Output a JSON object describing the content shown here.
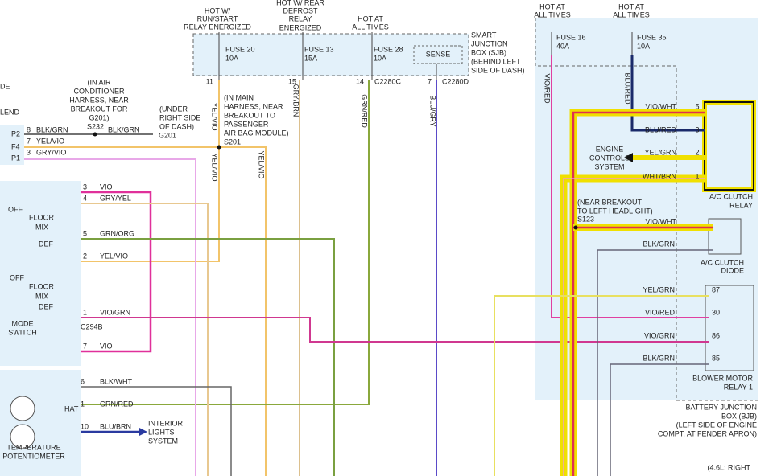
{
  "sjb": {
    "name": [
      "SMART",
      "JUNCTION",
      "BOX (SJB)",
      "(BEHIND LEFT",
      "SIDE OF DASH)"
    ],
    "feeds": [
      {
        "supply": [
          "HOT W/",
          "RUN/START",
          "RELAY ENERGIZED"
        ],
        "fuse": "FUSE 20",
        "rating": "10A",
        "pin": "11",
        "wire": "YEL/VIO"
      },
      {
        "supply": [
          "HOT W/ REAR",
          "DEFROST",
          "RELAY",
          "ENERGIZED"
        ],
        "fuse": "FUSE 13",
        "rating": "15A",
        "pin": "15",
        "wire": "GRY/BRN"
      },
      {
        "supply": [
          "HOT AT",
          "ALL TIMES"
        ],
        "fuse": "FUSE 28",
        "rating": "10A",
        "pin": "14",
        "connector": "C2280C",
        "wire": "GRN/RED"
      }
    ],
    "sense": {
      "label": "SENSE",
      "pin": "7",
      "connector": "C2280D",
      "wire": "BLU/GRY"
    }
  },
  "bjb": {
    "name": [
      "BATTERY JUNCTION",
      "BOX (BJB)",
      "(LEFT SIDE OF ENGINE",
      "COMPT, AT FENDER APRON)"
    ],
    "feeds": [
      {
        "supply": [
          "HOT AT",
          "ALL TIMES"
        ],
        "fuse": "FUSE 16",
        "rating": "40A",
        "wire": "VIO/RED"
      },
      {
        "supply": [
          "HOT AT",
          "ALL TIMES"
        ],
        "fuse": "FUSE 35",
        "rating": "10A",
        "wire": "BLU/RED"
      }
    ]
  },
  "ac_clutch_relay": {
    "name": [
      "A/C CLUTCH",
      "RELAY"
    ],
    "pins": [
      {
        "pin": "5",
        "wire": "VIO/WHT"
      },
      {
        "pin": "3",
        "wire": "BLU/RED"
      },
      {
        "pin": "2",
        "wire": "YEL/GRN"
      },
      {
        "pin": "1",
        "wire": "WHT/BRN"
      }
    ]
  },
  "engine_controls": [
    "ENGINE",
    "CONTROLS",
    "SYSTEM"
  ],
  "s123": {
    "note": [
      "(NEAR BREAKOUT",
      "TO LEFT HEADLIGHT)"
    ],
    "splice": "S123"
  },
  "ac_clutch_diode": {
    "name": [
      "A/C CLUTCH",
      "DIODE"
    ],
    "wires": [
      "VIO/WHT",
      "BLK/GRN"
    ]
  },
  "blower_motor_relay": {
    "name": [
      "BLOWER MOTOR",
      "RELAY 1"
    ],
    "pins": [
      {
        "pin": "87",
        "wire": "YEL/GRN"
      },
      {
        "pin": "30",
        "wire": "VIO/RED"
      },
      {
        "pin": "86",
        "wire": "VIO/GRN"
      },
      {
        "pin": "85",
        "wire": "BLK/GRN"
      }
    ]
  },
  "engine_note": "(4.6L: RIGHT",
  "left_cut": [
    "DE",
    "LEND"
  ],
  "s232": {
    "note": [
      "(IN AIR",
      "CONDITIONER",
      "HARNESS, NEAR",
      "BREAKOUT FOR",
      "G201)"
    ],
    "splice": "S232",
    "wire": "BLK/GRN"
  },
  "g201": {
    "note": [
      "(UNDER",
      "RIGHT SIDE",
      "OF DASH)"
    ],
    "ground": "G201"
  },
  "s201": {
    "note": [
      "(IN MAIN",
      "HARNESS, NEAR",
      "BREAKOUT TO",
      "PASSENGER",
      "AIR BAG MODULE)"
    ],
    "splice": "S201",
    "wires": [
      "YEL/VIO",
      "YEL/VIO"
    ]
  },
  "blend_connector": {
    "pins": [
      {
        "cavity": "P2",
        "pin": "8",
        "wire": "BLK/GRN"
      },
      {
        "cavity": "F4",
        "pin": "7",
        "wire": "YEL/VIO"
      },
      {
        "cavity": "P1",
        "pin": "3",
        "wire": "GRY/VIO"
      }
    ]
  },
  "mode_switch": {
    "name": [
      "MODE",
      "SWITCH"
    ],
    "connector": "C294B",
    "positions": [
      "OFF",
      "FLOOR",
      "MIX",
      "DEF"
    ],
    "pins": [
      {
        "pin": "3",
        "wire": "VIO"
      },
      {
        "pin": "4",
        "wire": "GRY/YEL"
      },
      {
        "pin": "5",
        "wire": "GRN/ORG"
      },
      {
        "pin": "2",
        "wire": "YEL/VIO"
      },
      {
        "pin": "1",
        "wire": "VIO/GRN"
      },
      {
        "pin": "7",
        "wire": "VIO"
      }
    ]
  },
  "temperature_potentiometer": {
    "name": [
      "TEMPERATURE",
      "POTENTIOMETER"
    ],
    "label": "HAT",
    "pins": [
      {
        "pin": "6",
        "wire": "BLK/WHT"
      },
      {
        "pin": "1",
        "wire": "GRN/RED"
      },
      {
        "pin": "10",
        "wire": "BLU/BRN"
      }
    ]
  },
  "interior_lights": [
    "INTERIOR",
    "LIGHTS",
    "SYSTEM"
  ]
}
